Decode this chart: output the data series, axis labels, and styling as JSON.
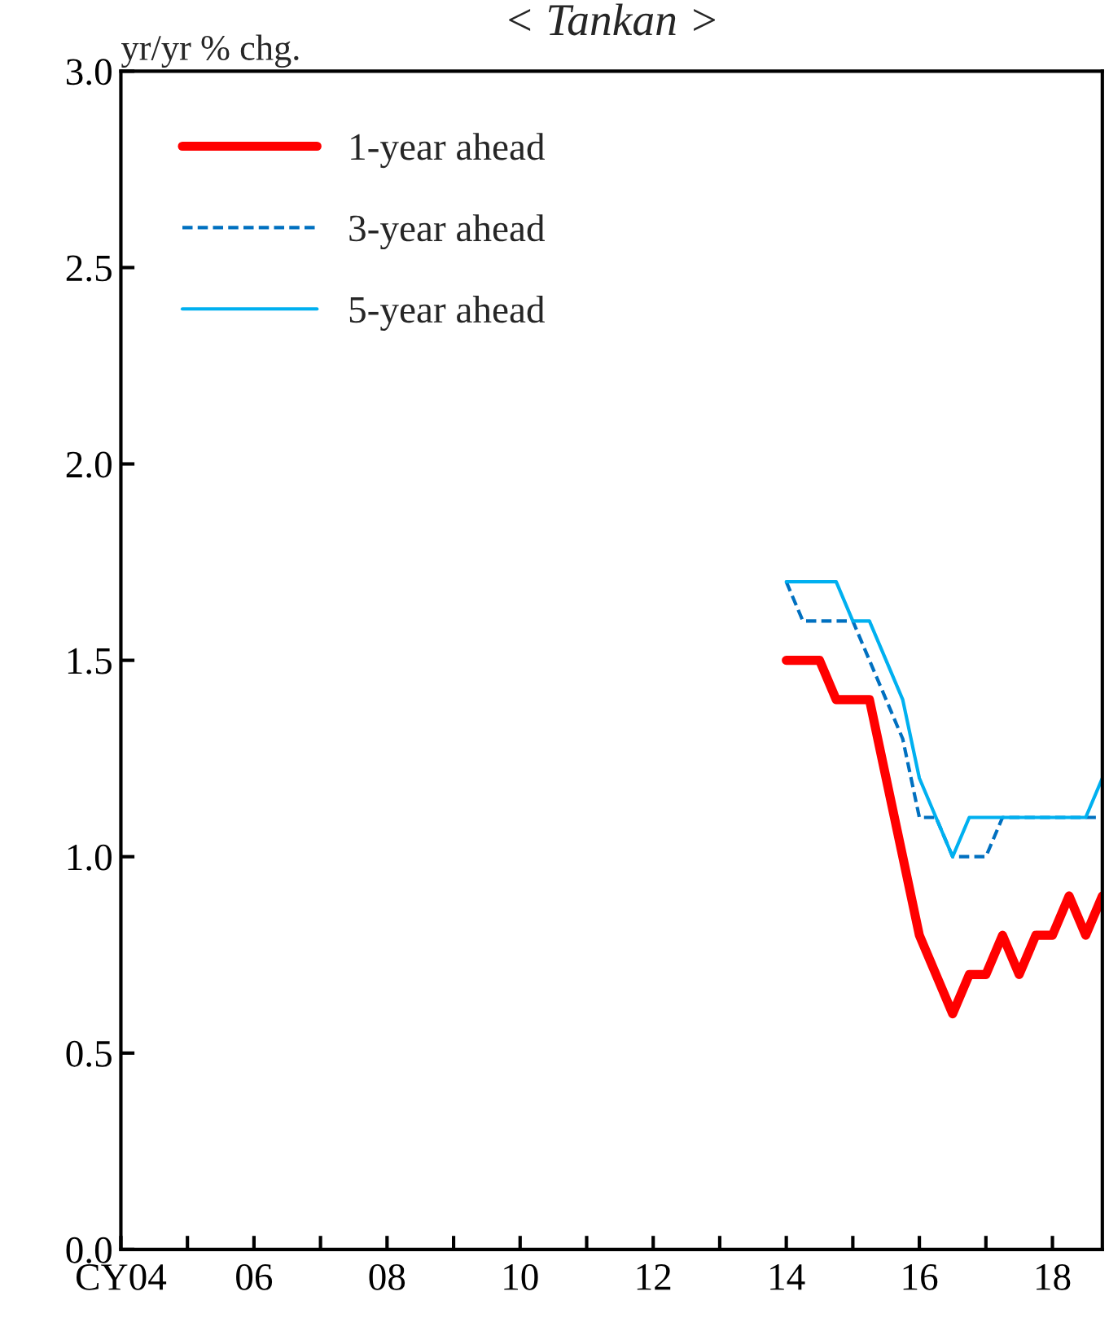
{
  "chart_data": {
    "type": "line",
    "title": "< Tankan >",
    "ylabel": "yr/yr % chg.",
    "xlim": [
      2004,
      2018.75
    ],
    "ylim": [
      0,
      3.0
    ],
    "xticks": [
      {
        "value": 2004,
        "label": "CY04"
      },
      {
        "value": 2005,
        "label": null
      },
      {
        "value": 2006,
        "label": "06"
      },
      {
        "value": 2007,
        "label": null
      },
      {
        "value": 2008,
        "label": "08"
      },
      {
        "value": 2009,
        "label": null
      },
      {
        "value": 2010,
        "label": "10"
      },
      {
        "value": 2011,
        "label": null
      },
      {
        "value": 2012,
        "label": "12"
      },
      {
        "value": 2013,
        "label": null
      },
      {
        "value": 2014,
        "label": "14"
      },
      {
        "value": 2015,
        "label": null
      },
      {
        "value": 2016,
        "label": "16"
      },
      {
        "value": 2017,
        "label": null
      },
      {
        "value": 2018,
        "label": "18"
      }
    ],
    "yticks": [
      {
        "value": 0,
        "label": "0.0"
      },
      {
        "value": 0.5,
        "label": "0.5"
      },
      {
        "value": 1.0,
        "label": "1.0"
      },
      {
        "value": 1.5,
        "label": "1.5"
      },
      {
        "value": 2.0,
        "label": "2.0"
      },
      {
        "value": 2.5,
        "label": "2.5"
      },
      {
        "value": 3.0,
        "label": "3.0"
      }
    ],
    "x": [
      2014.0,
      2014.25,
      2014.5,
      2014.75,
      2015.0,
      2015.25,
      2015.5,
      2015.75,
      2016.0,
      2016.25,
      2016.5,
      2016.75,
      2017.0,
      2017.25,
      2017.5,
      2017.75,
      2018.0,
      2018.25,
      2018.5,
      2018.75
    ],
    "grid": false,
    "legend": "top left",
    "marker": "none",
    "series": [
      {
        "name": "1-year ahead",
        "color": "#ff0000",
        "line_style": "solid",
        "values": [
          1.5,
          1.5,
          1.5,
          1.4,
          1.4,
          1.4,
          1.2,
          1.0,
          0.8,
          0.7,
          0.6,
          0.7,
          0.7,
          0.8,
          0.7,
          0.8,
          0.8,
          0.9,
          0.8,
          0.9
        ]
      },
      {
        "name": "3-year ahead",
        "color": "#0070c0",
        "line_style": "dashed",
        "values": [
          1.7,
          1.6,
          1.6,
          1.6,
          1.6,
          1.5,
          1.4,
          1.3,
          1.1,
          1.1,
          1.0,
          1.0,
          1.0,
          1.1,
          1.1,
          1.1,
          1.1,
          1.1,
          1.1,
          1.1
        ]
      },
      {
        "name": "5-year ahead",
        "color": "#00b0f0",
        "line_style": "solid",
        "values": [
          1.7,
          1.7,
          1.7,
          1.7,
          1.6,
          1.6,
          1.5,
          1.4,
          1.2,
          1.1,
          1.0,
          1.1,
          1.1,
          1.1,
          1.1,
          1.1,
          1.1,
          1.1,
          1.1,
          1.2
        ]
      }
    ]
  }
}
